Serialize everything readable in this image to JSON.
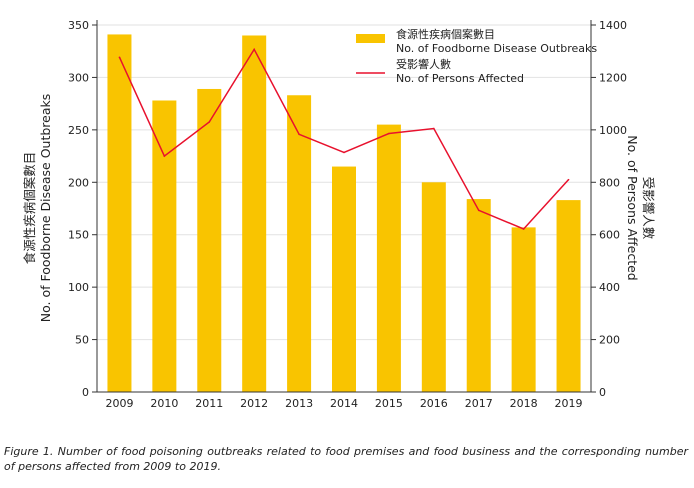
{
  "chart_data": {
    "type": "bar+line",
    "categories": [
      "2009",
      "2010",
      "2011",
      "2012",
      "2013",
      "2014",
      "2015",
      "2016",
      "2017",
      "2018",
      "2019"
    ],
    "series": [
      {
        "name": "食源性疾病個案數目 No. of Foodborne Disease Outbreaks",
        "name_zh": "食源性疾病個案數目",
        "name_en": "No. of Foodborne Disease Outbreaks",
        "type": "bar",
        "axis": "left",
        "color": "#F9C400",
        "values": [
          341,
          278,
          289,
          340,
          283,
          215,
          255,
          200,
          184,
          157,
          183
        ]
      },
      {
        "name": "受影響人數 No. of Persons Affected",
        "name_zh": "受影響人數",
        "name_en": "No. of Persons Affected",
        "type": "line",
        "axis": "right",
        "color": "#E8112D",
        "values": [
          1277,
          900,
          1030,
          1307,
          983,
          914,
          986,
          1005,
          693,
          622,
          810
        ]
      }
    ],
    "y_left": {
      "label_zh": "食源性疾病個案數目",
      "label_en": "No. of Foodborne Disease Outbreaks",
      "ylim": [
        0,
        350
      ],
      "ticks": [
        0,
        50,
        100,
        150,
        200,
        250,
        300,
        350
      ]
    },
    "y_right": {
      "label_zh": "受影響人數",
      "label_en": "No. of Persons Affected",
      "ylim": [
        0,
        1400
      ],
      "ticks": [
        0,
        200,
        400,
        600,
        800,
        1000,
        1200,
        1400
      ]
    },
    "grid": true,
    "legend": "top-right"
  },
  "caption": "Figure 1. Number of food poisoning outbreaks related to food premises and food business and the corresponding number of persons affected from 2009 to 2019."
}
